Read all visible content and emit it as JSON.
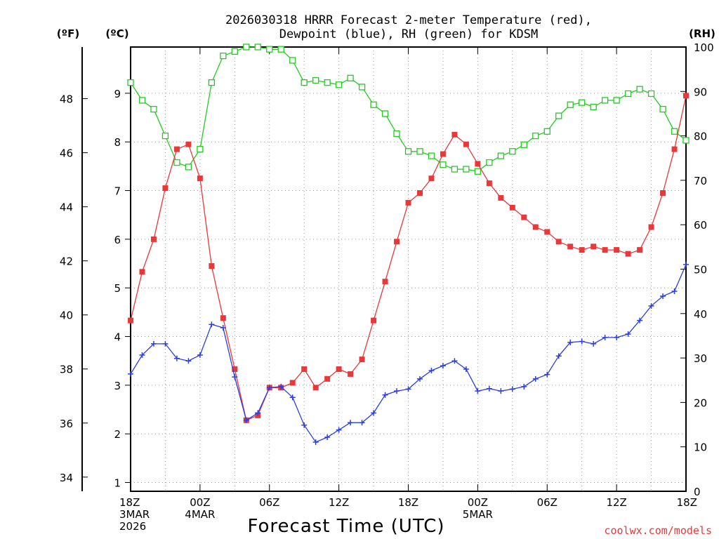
{
  "title": {
    "line1": "2026030318 HRRR Forecast 2-meter Temperature (red),",
    "line2": "Dewpoint (blue), RH (green) for KDSM"
  },
  "units": {
    "fahrenheit": "(ºF)",
    "celsius": "(ºC)",
    "rh": "(RH)"
  },
  "x_axis_label": "Forecast Time (UTC)",
  "credit": "coolwx.com/models",
  "colors": {
    "temperature": "#e8383a",
    "dewpoint": "#2b3fe0",
    "rh": "#22cc22",
    "grid": "#9a9a9a"
  },
  "chart_data": {
    "type": "line",
    "title": "2026030318 HRRR Forecast 2-meter Temperature (red), Dewpoint (blue), RH (green) for KDSM",
    "xlabel": "Forecast Time (UTC)",
    "x_hours": [
      0,
      1,
      2,
      3,
      4,
      5,
      6,
      7,
      8,
      9,
      10,
      11,
      12,
      13,
      14,
      15,
      16,
      17,
      18,
      19,
      20,
      21,
      22,
      23,
      24,
      25,
      26,
      27,
      28,
      29,
      30,
      31,
      32,
      33,
      34,
      35,
      36,
      37,
      38,
      39,
      40,
      41,
      42,
      43,
      44,
      45,
      46,
      47,
      48
    ],
    "x_ticks": [
      {
        "hour": 0,
        "lines": [
          "18Z",
          "3MAR",
          "2026"
        ]
      },
      {
        "hour": 6,
        "lines": [
          "00Z",
          "4MAR"
        ]
      },
      {
        "hour": 12,
        "lines": [
          "06Z"
        ]
      },
      {
        "hour": 18,
        "lines": [
          "12Z"
        ]
      },
      {
        "hour": 24,
        "lines": [
          "18Z"
        ]
      },
      {
        "hour": 30,
        "lines": [
          "00Z",
          "5MAR"
        ]
      },
      {
        "hour": 36,
        "lines": [
          "06Z"
        ]
      },
      {
        "hour": 42,
        "lines": [
          "12Z"
        ]
      },
      {
        "hour": 48,
        "lines": [
          "18Z"
        ]
      }
    ],
    "y_celsius": {
      "range": [
        0.82,
        9.95
      ],
      "ticks": [
        1,
        2,
        3,
        4,
        5,
        6,
        7,
        8,
        9
      ]
    },
    "y_fahrenheit": {
      "ticks": [
        34,
        36,
        38,
        40,
        42,
        44,
        46,
        48
      ]
    },
    "y_rh": {
      "range": [
        0,
        100
      ],
      "ticks": [
        0,
        10,
        20,
        30,
        40,
        50,
        60,
        70,
        80,
        90,
        100
      ]
    },
    "series": [
      {
        "name": "Temperature",
        "units": "°C",
        "marker": "filled-square",
        "values": [
          4.33,
          5.33,
          6.0,
          7.05,
          7.85,
          7.95,
          7.25,
          5.45,
          4.38,
          3.33,
          2.28,
          2.38,
          2.95,
          2.95,
          3.05,
          3.33,
          2.95,
          3.13,
          3.33,
          3.23,
          3.53,
          4.33,
          5.13,
          5.95,
          6.75,
          6.95,
          7.25,
          7.75,
          8.15,
          7.95,
          7.55,
          7.15,
          6.85,
          6.65,
          6.45,
          6.25,
          6.15,
          5.95,
          5.85,
          5.78,
          5.85,
          5.78,
          5.78,
          5.7,
          5.78,
          6.25,
          6.95,
          7.85,
          8.95
        ]
      },
      {
        "name": "Dewpoint",
        "units": "°C",
        "marker": "plus",
        "values": [
          3.23,
          3.62,
          3.85,
          3.85,
          3.55,
          3.5,
          3.62,
          4.25,
          4.18,
          3.17,
          2.28,
          2.43,
          2.95,
          2.97,
          2.75,
          2.18,
          1.83,
          1.93,
          2.08,
          2.23,
          2.23,
          2.43,
          2.8,
          2.88,
          2.92,
          3.13,
          3.3,
          3.4,
          3.5,
          3.33,
          2.88,
          2.93,
          2.88,
          2.92,
          2.97,
          3.13,
          3.22,
          3.6,
          3.88,
          3.9,
          3.85,
          3.98,
          3.98,
          4.05,
          4.33,
          4.63,
          4.83,
          4.93,
          5.48
        ]
      },
      {
        "name": "RH",
        "units": "%",
        "marker": "open-square",
        "values": [
          92,
          88,
          86,
          80,
          74,
          73,
          77,
          92,
          98,
          99,
          100,
          100,
          99.5,
          99.5,
          97,
          92,
          92.5,
          92,
          91.5,
          93,
          91,
          87,
          85,
          80.5,
          76.5,
          76.5,
          75.5,
          73.5,
          72.5,
          72.5,
          72,
          74,
          75.5,
          76.5,
          78,
          80,
          81,
          84.5,
          87,
          87.5,
          86.5,
          88,
          88,
          89.5,
          90.5,
          89.5,
          86,
          81,
          79
        ]
      }
    ]
  }
}
